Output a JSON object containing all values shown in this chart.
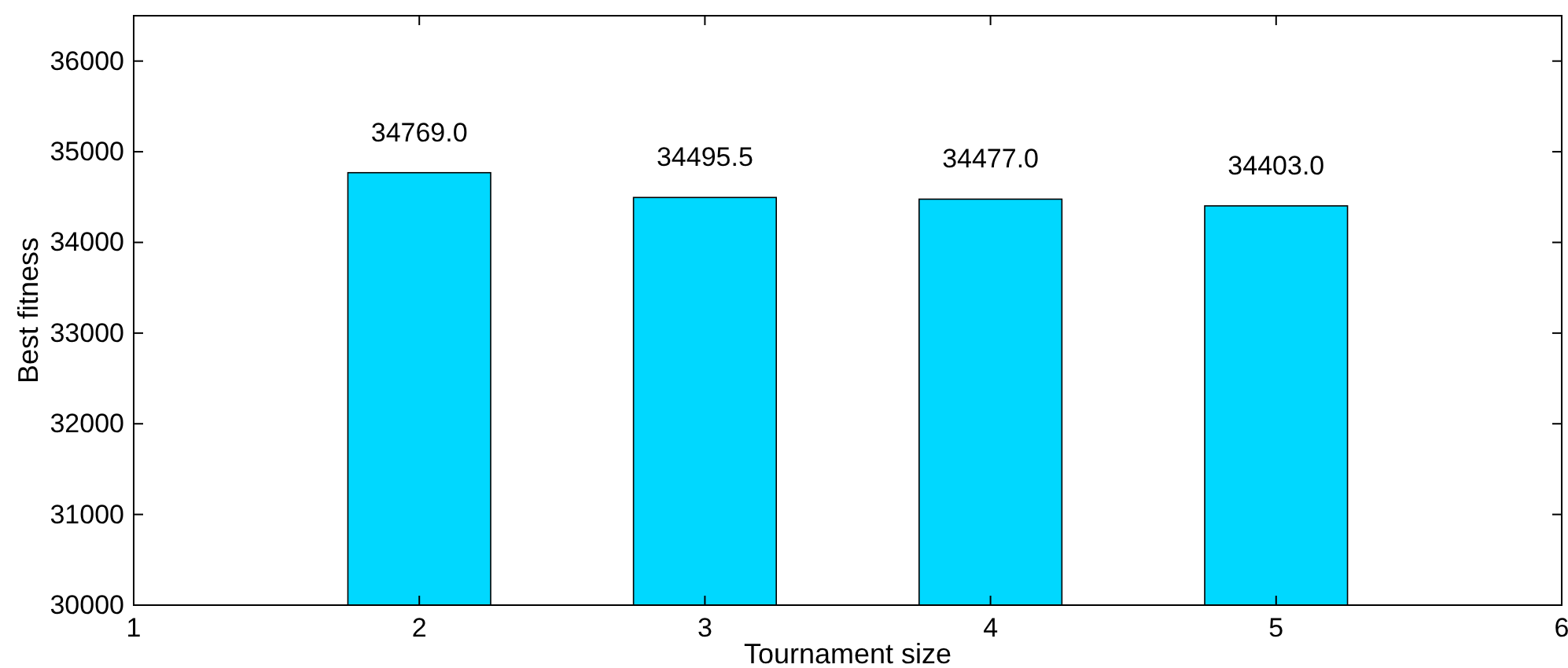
{
  "chart_data": {
    "type": "bar",
    "xlabel": "Tournament size",
    "ylabel": "Best fitness",
    "x": [
      2,
      3,
      4,
      5
    ],
    "values": [
      34769.0,
      34495.5,
      34477.0,
      34403.0
    ],
    "value_labels": [
      "34769.0",
      "34495.5",
      "34477.0",
      "34403.0"
    ],
    "color": "#00d8ff",
    "xlim": [
      1,
      6
    ],
    "xticks": [
      1,
      2,
      3,
      4,
      5,
      6
    ],
    "ylim": [
      30000,
      36500
    ],
    "yticks": [
      30000,
      31000,
      32000,
      33000,
      34000,
      35000,
      36000
    ],
    "grid": false
  }
}
